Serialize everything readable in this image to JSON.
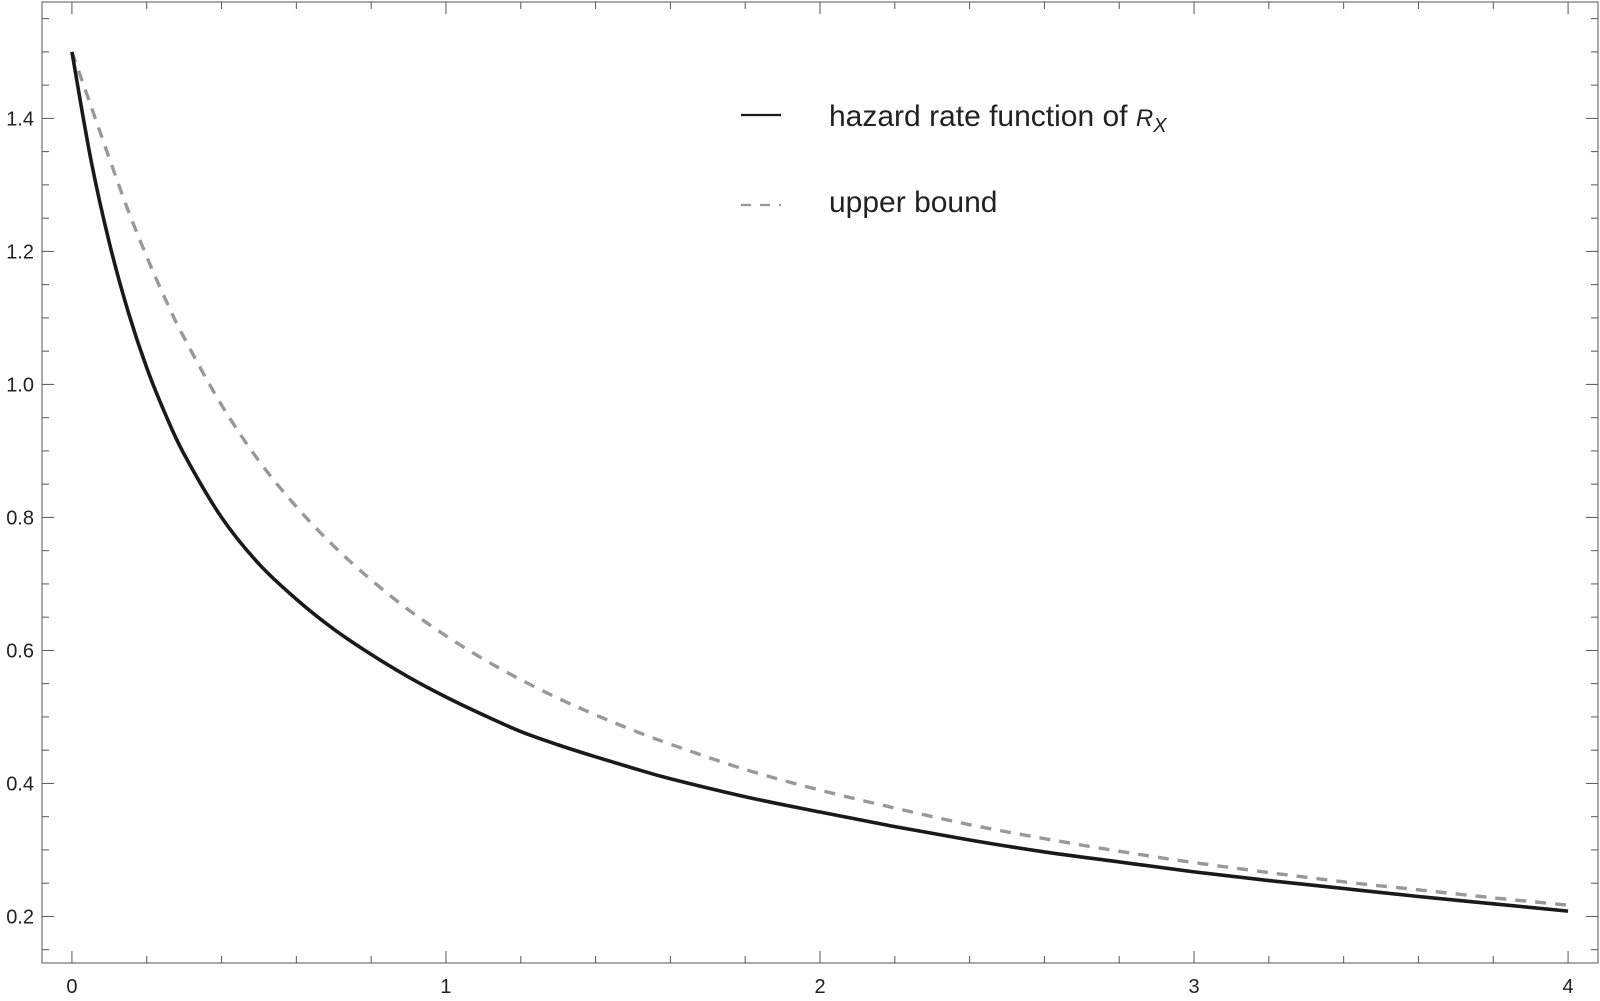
{
  "chart_data": {
    "type": "line",
    "title": "",
    "xlabel": "",
    "ylabel": "",
    "xlim": [
      -0.08,
      4.08
    ],
    "ylim": [
      0.13,
      1.575
    ],
    "grid": false,
    "legend_position": "top-right",
    "x_ticks": [
      {
        "value": 0,
        "label": "0"
      },
      {
        "value": 1,
        "label": "1"
      },
      {
        "value": 2,
        "label": "2"
      },
      {
        "value": 3,
        "label": "3"
      },
      {
        "value": 4,
        "label": "4"
      }
    ],
    "y_ticks": [
      {
        "value": 0.2,
        "label": "0.2"
      },
      {
        "value": 0.4,
        "label": "0.4"
      },
      {
        "value": 0.6,
        "label": "0.6"
      },
      {
        "value": 0.8,
        "label": "0.8"
      },
      {
        "value": 1.0,
        "label": "1.0"
      },
      {
        "value": 1.2,
        "label": "1.2"
      },
      {
        "value": 1.4,
        "label": "1.4"
      }
    ],
    "x_minor_step": 0.2,
    "y_minor_step": 0.05,
    "legend": {
      "series0_text": "hazard rate function of ",
      "series0_math_main": "R",
      "series0_math_sub": "X",
      "series1_text": "upper bound"
    },
    "series": [
      {
        "color": "#1a1a1a",
        "dash": "solid",
        "x": [
          0,
          0.05,
          0.1,
          0.15,
          0.2,
          0.25,
          0.3,
          0.4,
          0.5,
          0.6,
          0.7,
          0.8,
          0.9,
          1.0,
          1.1,
          1.2,
          1.3,
          1.4,
          1.5,
          1.6,
          1.8,
          2.0,
          2.2,
          2.4,
          2.6,
          2.8,
          3.0,
          3.2,
          3.4,
          3.6,
          3.8,
          4.0
        ],
        "values": [
          1.5,
          1.34,
          1.213,
          1.11,
          1.025,
          0.955,
          0.895,
          0.8,
          0.73,
          0.677,
          0.632,
          0.594,
          0.56,
          0.53,
          0.503,
          0.478,
          0.458,
          0.44,
          0.423,
          0.407,
          0.38,
          0.357,
          0.335,
          0.315,
          0.297,
          0.282,
          0.267,
          0.254,
          0.242,
          0.23,
          0.219,
          0.208
        ]
      },
      {
        "color": "#999999",
        "dash": "dashed",
        "x": [
          0,
          0.05,
          0.1,
          0.15,
          0.2,
          0.25,
          0.3,
          0.4,
          0.5,
          0.6,
          0.7,
          0.8,
          0.9,
          1.0,
          1.1,
          1.2,
          1.3,
          1.4,
          1.5,
          1.6,
          1.8,
          2.0,
          2.2,
          2.4,
          2.6,
          2.8,
          3.0,
          3.2,
          3.4,
          3.6,
          3.8,
          4.0
        ],
        "values": [
          1.5,
          1.42,
          1.34,
          1.262,
          1.192,
          1.128,
          1.07,
          0.969,
          0.885,
          0.816,
          0.757,
          0.706,
          0.661,
          0.622,
          0.587,
          0.556,
          0.528,
          0.503,
          0.48,
          0.459,
          0.421,
          0.39,
          0.363,
          0.338,
          0.317,
          0.298,
          0.281,
          0.266,
          0.252,
          0.24,
          0.228,
          0.217
        ]
      }
    ]
  }
}
